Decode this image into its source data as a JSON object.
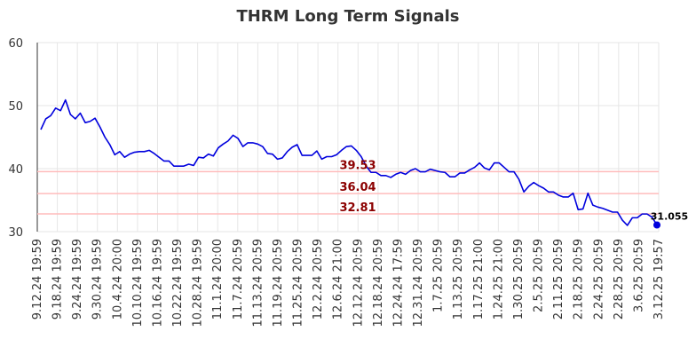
{
  "chart_data": {
    "type": "line",
    "title": "THRM Long Term Signals",
    "xlabel": "",
    "ylabel": "",
    "ylim": [
      30,
      60
    ],
    "yticks": [
      "30",
      "40",
      "50",
      "60"
    ],
    "grid": true,
    "x_tick_labels": [
      "9.12.24 19:59",
      "9.18.24 19:59",
      "9.24.24 19:59",
      "9.30.24 19:59",
      "10.4.24 20:00",
      "10.10.24 19:59",
      "10.16.24 19:59",
      "10.22.24 19:59",
      "10.28.24 19:59",
      "11.1.24 20:00",
      "11.7.24 20:59",
      "11.13.24 20:59",
      "11.19.24 20:59",
      "11.25.24 20:59",
      "12.2.24 20:59",
      "12.6.24 21:00",
      "12.12.24 20:59",
      "12.18.24 20:59",
      "12.24.24 17:59",
      "12.31.24 20:59",
      "1.7.25 20:59",
      "1.13.25 20:59",
      "1.17.25 21:00",
      "1.24.25 21:00",
      "1.30.25 20:59",
      "2.5.25 20:59",
      "2.11.25 20:59",
      "2.18.25 20:59",
      "2.24.25 20:59",
      "2.28.25 20:59",
      "3.6.25 20:59",
      "3.12.25 19:57"
    ],
    "series": [
      {
        "color": "#0000dd",
        "values": [
          46.2,
          47.9,
          48.4,
          49.6,
          49.2,
          50.9,
          48.6,
          47.9,
          48.8,
          47.3,
          47.5,
          48.0,
          46.6,
          45.0,
          43.8,
          42.2,
          42.7,
          41.8,
          42.3,
          42.6,
          42.7,
          42.7,
          42.9,
          42.4,
          41.8,
          41.2,
          41.2,
          40.4,
          40.4,
          40.4,
          40.7,
          40.5,
          41.8,
          41.7,
          42.3,
          42.0,
          43.3,
          43.9,
          44.4,
          45.3,
          44.8,
          43.5,
          44.1,
          44.1,
          43.9,
          43.5,
          42.4,
          42.3,
          41.5,
          41.7,
          42.7,
          43.4,
          43.8,
          42.1,
          42.1,
          42.1,
          42.8,
          41.5,
          41.9,
          41.9,
          42.2,
          42.9,
          43.5,
          43.6,
          42.9,
          41.9,
          40.4,
          39.4,
          39.4,
          38.9,
          38.9,
          38.6,
          39.1,
          39.4,
          39.1,
          39.7,
          40.0,
          39.5,
          39.5,
          39.9,
          39.7,
          39.5,
          39.4,
          38.7,
          38.7,
          39.3,
          39.3,
          39.8,
          40.2,
          40.9,
          40.1,
          39.8,
          40.9,
          40.9,
          40.2,
          39.5,
          39.5,
          38.3,
          36.3,
          37.2,
          37.8,
          37.3,
          36.9,
          36.3,
          36.3,
          35.8,
          35.5,
          35.5,
          36.1,
          33.5,
          33.6,
          36.1,
          34.2,
          33.9,
          33.7,
          33.4,
          33.1,
          33.1,
          31.8,
          31.0,
          32.2,
          32.2,
          32.8,
          32.8,
          32.3,
          31.055
        ]
      }
    ],
    "levels": [
      {
        "value": 39.53,
        "label": "39.53",
        "color": "#ffbbbb"
      },
      {
        "value": 36.04,
        "label": "36.04",
        "color": "#ffbbbb"
      },
      {
        "value": 32.81,
        "label": "32.81",
        "color": "#ffbbbb"
      }
    ],
    "last_value_label": "31.055",
    "line_color": "#0000dd",
    "level_text_color": "#8b0000"
  }
}
